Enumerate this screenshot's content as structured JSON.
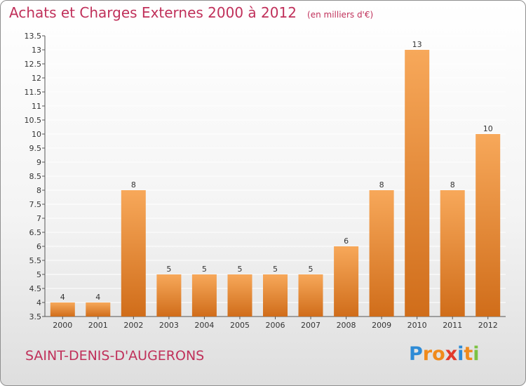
{
  "header": {
    "title": "Achats et Charges Externes 2000 à 2012",
    "unit_note": "(en milliers d'€)"
  },
  "footer": {
    "commune": "SAINT-DENIS-D'AUGERONS",
    "brand_letters": [
      "P",
      "r",
      "o",
      "x",
      "i",
      "t",
      "i"
    ],
    "brand_colors": [
      "#2e8bd6",
      "#f08a1c",
      "#f08a1c",
      "#e23a2c",
      "#2e8bd6",
      "#f08a1c",
      "#7cc242"
    ]
  },
  "colors": {
    "title": "#c0305a",
    "bar_light": "#f7a85a",
    "bar_dark": "#d06d1a",
    "grid": "#ffffff"
  },
  "chart_data": {
    "type": "bar",
    "title": "Achats et Charges Externes 2000 à 2012",
    "subtitle": "(en milliers d'€)",
    "categories": [
      "2000",
      "2001",
      "2002",
      "2003",
      "2004",
      "2005",
      "2006",
      "2007",
      "2008",
      "2009",
      "2010",
      "2011",
      "2012"
    ],
    "values": [
      4,
      4,
      8,
      5,
      5,
      5,
      5,
      5,
      6,
      8,
      13,
      8,
      10
    ],
    "data_labels": [
      "4",
      "4",
      "8",
      "5",
      "5",
      "5",
      "5",
      "5",
      "6",
      "8",
      "13",
      "8",
      "10"
    ],
    "ylim": [
      3.5,
      13.5
    ],
    "yticks": [
      "3.5",
      "4",
      "4.5",
      "5",
      "5.5",
      "6",
      "6.5",
      "7",
      "7.5",
      "8",
      "8.5",
      "9",
      "9.5",
      "10",
      "10.5",
      "11",
      "11.5",
      "12",
      "12.5",
      "13",
      "13.5"
    ],
    "grid": true,
    "legend": "none"
  }
}
